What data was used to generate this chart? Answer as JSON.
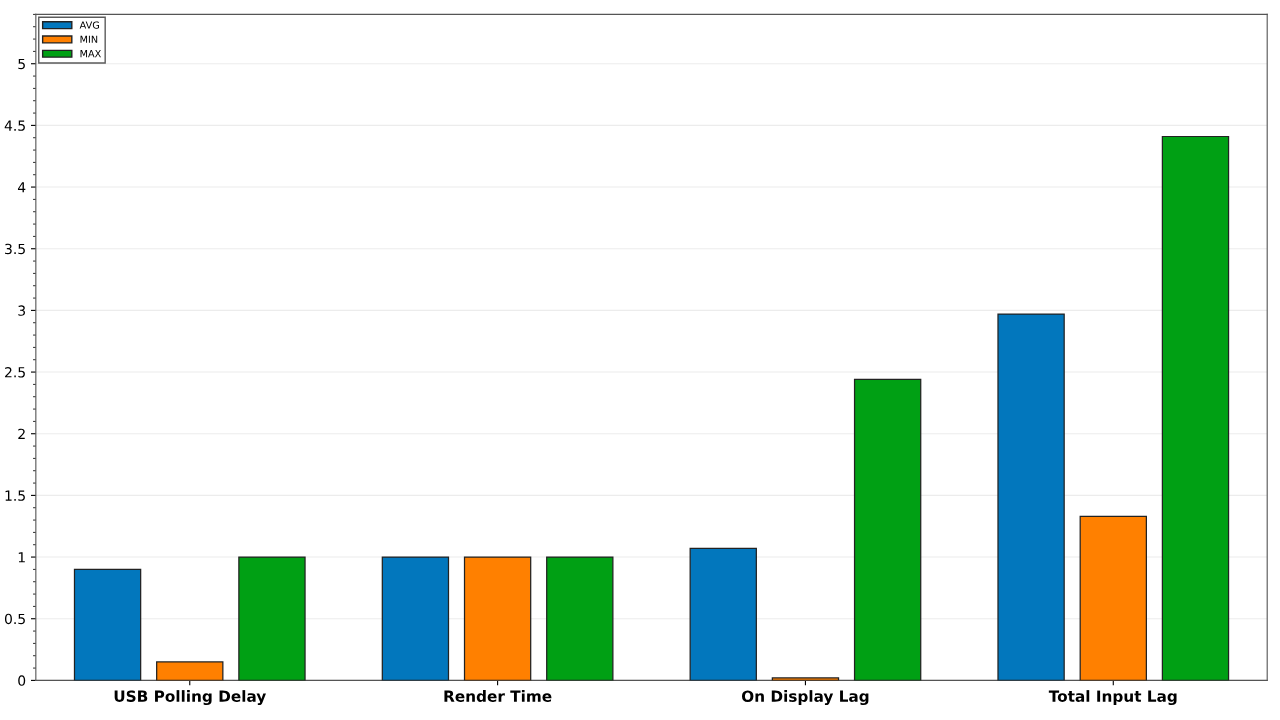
{
  "chart_data": {
    "type": "bar",
    "categories": [
      "USB Polling Delay",
      "Render Time",
      "On Display Lag",
      "Total Input Lag"
    ],
    "series": [
      {
        "name": "AVG",
        "color": "#0277bd",
        "values": [
          0.9,
          1.0,
          1.07,
          2.97
        ]
      },
      {
        "name": "MIN",
        "color": "#ff8000",
        "values": [
          0.15,
          1.0,
          0.02,
          1.33
        ]
      },
      {
        "name": "MAX",
        "color": "#00a014",
        "values": [
          1.0,
          1.0,
          2.44,
          4.41
        ]
      }
    ],
    "ylim": [
      0,
      5.4
    ],
    "yticks": [
      0,
      0.5,
      1,
      1.5,
      2,
      2.5,
      3,
      3.5,
      4,
      4.5,
      5
    ],
    "grid": "y",
    "legend": "top left"
  }
}
